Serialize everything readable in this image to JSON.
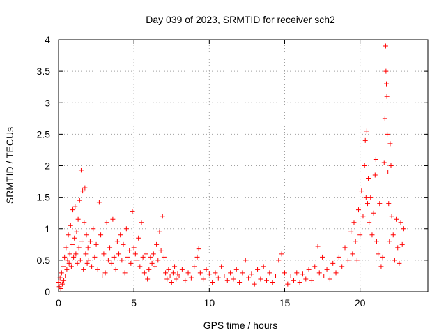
{
  "chart_data": {
    "type": "scatter",
    "title": "Day 039 of 2023, SRMTID for receiver sch2",
    "xlabel": "GPS time / hours",
    "ylabel": "SRMTID / TECUs",
    "xlim": [
      0,
      24.5
    ],
    "ylim": [
      0,
      4
    ],
    "xticks": [
      0,
      5,
      10,
      15,
      20
    ],
    "xtick_labels": [
      "0",
      "5",
      "10",
      "15",
      "20"
    ],
    "yticks": [
      0,
      0.5,
      1,
      1.5,
      2,
      2.5,
      3,
      3.5,
      4
    ],
    "ytick_labels": [
      "0",
      "0.5",
      "1",
      "1.5",
      "2",
      "2.5",
      "3",
      "3.5",
      "4"
    ],
    "grid": true,
    "marker": "plus",
    "series": [
      {
        "name": "SRMTID",
        "color": "#ff0000",
        "points": [
          [
            0.0,
            0.15
          ],
          [
            0.05,
            0.08
          ],
          [
            0.1,
            0.22
          ],
          [
            0.15,
            0.05
          ],
          [
            0.2,
            0.3
          ],
          [
            0.25,
            0.12
          ],
          [
            0.3,
            0.4
          ],
          [
            0.35,
            0.18
          ],
          [
            0.4,
            0.55
          ],
          [
            0.45,
            0.25
          ],
          [
            0.5,
            0.7
          ],
          [
            0.55,
            0.35
          ],
          [
            0.6,
            0.5
          ],
          [
            0.65,
            0.9
          ],
          [
            0.7,
            0.45
          ],
          [
            0.75,
            0.6
          ],
          [
            0.8,
            1.05
          ],
          [
            0.85,
            0.4
          ],
          [
            0.9,
            0.75
          ],
          [
            0.95,
            1.3
          ],
          [
            1.0,
            0.55
          ],
          [
            1.05,
            0.85
          ],
          [
            1.1,
            1.35
          ],
          [
            1.15,
            0.6
          ],
          [
            1.2,
            0.95
          ],
          [
            1.25,
            0.45
          ],
          [
            1.3,
            1.15
          ],
          [
            1.35,
            0.7
          ],
          [
            1.4,
            1.45
          ],
          [
            1.45,
            0.5
          ],
          [
            1.5,
            1.93
          ],
          [
            1.55,
            0.8
          ],
          [
            1.6,
            1.6
          ],
          [
            1.65,
            0.35
          ],
          [
            1.7,
            1.1
          ],
          [
            1.75,
            1.65
          ],
          [
            1.8,
            0.6
          ],
          [
            1.85,
            0.9
          ],
          [
            1.9,
            0.45
          ],
          [
            1.95,
            0.7
          ],
          [
            2.0,
            0.5
          ],
          [
            2.1,
            0.8
          ],
          [
            2.2,
            0.4
          ],
          [
            2.3,
            1.0
          ],
          [
            2.4,
            0.55
          ],
          [
            2.5,
            0.75
          ],
          [
            2.6,
            0.35
          ],
          [
            2.7,
            1.42
          ],
          [
            2.8,
            0.9
          ],
          [
            2.9,
            0.25
          ],
          [
            3.0,
            0.6
          ],
          [
            3.1,
            0.3
          ],
          [
            3.2,
            1.1
          ],
          [
            3.3,
            0.5
          ],
          [
            3.4,
            0.7
          ],
          [
            3.5,
            0.45
          ],
          [
            3.6,
            1.15
          ],
          [
            3.7,
            0.55
          ],
          [
            3.8,
            0.35
          ],
          [
            3.9,
            0.8
          ],
          [
            4.0,
            0.6
          ],
          [
            4.1,
            0.9
          ],
          [
            4.2,
            0.5
          ],
          [
            4.3,
            0.75
          ],
          [
            4.4,
            0.3
          ],
          [
            4.5,
            1.0
          ],
          [
            4.6,
            0.55
          ],
          [
            4.7,
            0.65
          ],
          [
            4.8,
            0.45
          ],
          [
            4.9,
            1.27
          ],
          [
            5.0,
            0.7
          ],
          [
            5.1,
            0.6
          ],
          [
            5.2,
            0.5
          ],
          [
            5.3,
            0.85
          ],
          [
            5.4,
            0.4
          ],
          [
            5.5,
            1.1
          ],
          [
            5.6,
            0.55
          ],
          [
            5.7,
            0.3
          ],
          [
            5.8,
            0.6
          ],
          [
            5.9,
            0.2
          ],
          [
            6.0,
            0.35
          ],
          [
            6.1,
            0.55
          ],
          [
            6.2,
            0.45
          ],
          [
            6.3,
            0.6
          ],
          [
            6.4,
            0.4
          ],
          [
            6.5,
            0.75
          ],
          [
            6.6,
            0.5
          ],
          [
            6.7,
            0.95
          ],
          [
            6.8,
            0.65
          ],
          [
            6.9,
            1.2
          ],
          [
            7.0,
            0.55
          ],
          [
            7.1,
            0.3
          ],
          [
            7.2,
            0.2
          ],
          [
            7.3,
            0.35
          ],
          [
            7.4,
            0.25
          ],
          [
            7.5,
            0.15
          ],
          [
            7.6,
            0.3
          ],
          [
            7.7,
            0.4
          ],
          [
            7.8,
            0.2
          ],
          [
            7.9,
            0.28
          ],
          [
            8.0,
            0.25
          ],
          [
            8.2,
            0.35
          ],
          [
            8.4,
            0.18
          ],
          [
            8.6,
            0.3
          ],
          [
            8.8,
            0.22
          ],
          [
            9.0,
            0.4
          ],
          [
            9.2,
            0.55
          ],
          [
            9.3,
            0.68
          ],
          [
            9.4,
            0.3
          ],
          [
            9.6,
            0.2
          ],
          [
            9.8,
            0.35
          ],
          [
            10.0,
            0.28
          ],
          [
            10.2,
            0.15
          ],
          [
            10.4,
            0.3
          ],
          [
            10.6,
            0.22
          ],
          [
            10.8,
            0.4
          ],
          [
            11.0,
            0.25
          ],
          [
            11.2,
            0.18
          ],
          [
            11.4,
            0.3
          ],
          [
            11.6,
            0.2
          ],
          [
            11.8,
            0.35
          ],
          [
            12.0,
            0.15
          ],
          [
            12.2,
            0.3
          ],
          [
            12.4,
            0.5
          ],
          [
            12.6,
            0.22
          ],
          [
            12.8,
            0.28
          ],
          [
            13.0,
            0.12
          ],
          [
            13.2,
            0.35
          ],
          [
            13.4,
            0.2
          ],
          [
            13.6,
            0.4
          ],
          [
            13.8,
            0.18
          ],
          [
            14.0,
            0.3
          ],
          [
            14.2,
            0.15
          ],
          [
            14.4,
            0.25
          ],
          [
            14.6,
            0.5
          ],
          [
            14.8,
            0.6
          ],
          [
            15.0,
            0.3
          ],
          [
            15.2,
            0.12
          ],
          [
            15.4,
            0.25
          ],
          [
            15.6,
            0.18
          ],
          [
            15.8,
            0.3
          ],
          [
            16.0,
            0.15
          ],
          [
            16.2,
            0.28
          ],
          [
            16.4,
            0.2
          ],
          [
            16.6,
            0.35
          ],
          [
            16.8,
            0.18
          ],
          [
            17.0,
            0.4
          ],
          [
            17.2,
            0.72
          ],
          [
            17.3,
            0.3
          ],
          [
            17.5,
            0.55
          ],
          [
            17.6,
            0.25
          ],
          [
            17.8,
            0.35
          ],
          [
            18.0,
            0.2
          ],
          [
            18.2,
            0.45
          ],
          [
            18.4,
            0.3
          ],
          [
            18.6,
            0.55
          ],
          [
            18.8,
            0.4
          ],
          [
            19.0,
            0.7
          ],
          [
            19.2,
            0.5
          ],
          [
            19.4,
            0.95
          ],
          [
            19.5,
            0.6
          ],
          [
            19.6,
            1.1
          ],
          [
            19.7,
            0.8
          ],
          [
            19.8,
            0.5
          ],
          [
            19.9,
            1.3
          ],
          [
            20.0,
            0.9
          ],
          [
            20.1,
            1.6
          ],
          [
            20.2,
            1.2
          ],
          [
            20.3,
            2.0
          ],
          [
            20.35,
            2.4
          ],
          [
            20.4,
            1.5
          ],
          [
            20.45,
            2.55
          ],
          [
            20.5,
            1.4
          ],
          [
            20.55,
            1.8
          ],
          [
            20.6,
            1.1
          ],
          [
            20.7,
            1.5
          ],
          [
            20.8,
            0.9
          ],
          [
            20.9,
            1.25
          ],
          [
            21.0,
            1.85
          ],
          [
            21.05,
            2.1
          ],
          [
            21.1,
            0.8
          ],
          [
            21.2,
            0.6
          ],
          [
            21.3,
            1.4
          ],
          [
            21.4,
            0.4
          ],
          [
            21.5,
            0.55
          ],
          [
            21.6,
            2.05
          ],
          [
            21.65,
            2.75
          ],
          [
            21.7,
            3.9
          ],
          [
            21.72,
            3.5
          ],
          [
            21.75,
            3.3
          ],
          [
            21.78,
            3.1
          ],
          [
            21.8,
            2.5
          ],
          [
            21.85,
            1.9
          ],
          [
            21.9,
            1.4
          ],
          [
            21.95,
            0.8
          ],
          [
            22.0,
            2.35
          ],
          [
            22.05,
            2.0
          ],
          [
            22.1,
            1.2
          ],
          [
            22.2,
            0.9
          ],
          [
            22.3,
            0.5
          ],
          [
            22.4,
            1.15
          ],
          [
            22.5,
            0.7
          ],
          [
            22.6,
            0.45
          ],
          [
            22.7,
            1.1
          ],
          [
            22.8,
            0.75
          ],
          [
            22.9,
            1.0
          ]
        ]
      }
    ]
  }
}
